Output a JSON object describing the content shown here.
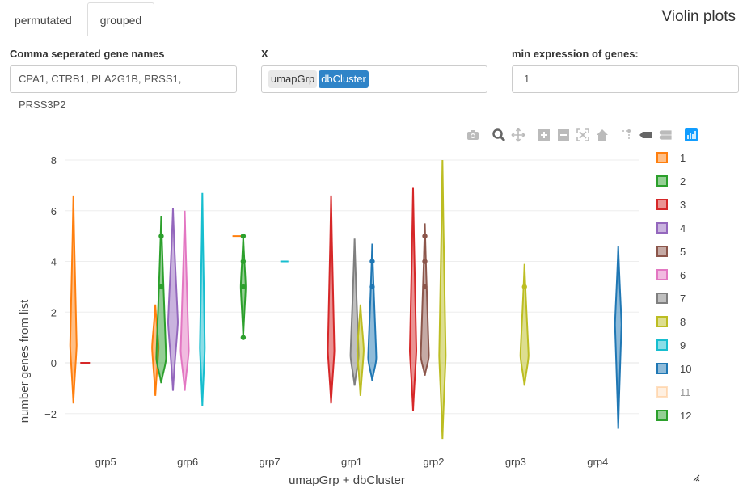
{
  "tabs": [
    {
      "label": "permutated",
      "active": false
    },
    {
      "label": "grouped",
      "active": true
    }
  ],
  "page_title": "Violin plots",
  "fields": {
    "genes_label": "Comma seperated gene names",
    "genes_value": "CPA1, CTRB1, PLA2G1B, PRSS1, PRSS3P2",
    "x_label": "X",
    "x_chips": [
      "umapGrp",
      "dbCluster"
    ],
    "minexpr_label": "min expression of genes:",
    "minexpr_value": "1"
  },
  "modebar_icons": [
    "camera-icon",
    "zoom-icon",
    "pan-icon",
    "zoom-in-icon",
    "zoom-out-icon",
    "autoscale-icon",
    "reset-axes-icon",
    "spike-lines-icon",
    "hover-closest-icon",
    "hover-compare-icon",
    "plotly-logo-icon"
  ],
  "chart_data": {
    "type": "violin",
    "xlabel": "umapGrp + dbCluster",
    "ylabel": "number genes from list",
    "categories": [
      "grp5",
      "grp6",
      "grp7",
      "grp1",
      "grp2",
      "grp3",
      "grp4"
    ],
    "ylim": [
      -3,
      8
    ],
    "yticks": [
      -2,
      0,
      2,
      4,
      6,
      8
    ],
    "grid": true,
    "legend_position": "right",
    "series": [
      {
        "name": "1",
        "color": "#ff7f0e",
        "violins": [
          {
            "cat": "grp5",
            "min": -1.6,
            "max": 6.6,
            "peak": 0.7,
            "width": 4
          },
          {
            "cat": "grp6",
            "min": -1.3,
            "max": 2.3,
            "peak": 0.6,
            "width": 4
          },
          {
            "cat": "grp7",
            "min": 5,
            "max": 5,
            "peak": 5,
            "width": 6
          }
        ]
      },
      {
        "name": "2",
        "color": "#2ca02c",
        "violins": [
          {
            "cat": "grp6",
            "min": -0.8,
            "max": 5.8,
            "peak": 0.2,
            "width": 6,
            "points": [
              5,
              3
            ]
          },
          {
            "cat": "grp7",
            "min": 1,
            "max": 5,
            "peak": 3,
            "width": 3,
            "points": [
              5,
              4,
              3,
              1
            ]
          }
        ]
      },
      {
        "name": "3",
        "color": "#d62728",
        "violins": [
          {
            "cat": "grp5",
            "min": 0,
            "max": 0,
            "peak": 0,
            "width": 6
          },
          {
            "cat": "grp1",
            "min": -1.6,
            "max": 6.6,
            "peak": 0.5,
            "width": 4
          },
          {
            "cat": "grp2",
            "min": -1.9,
            "max": 6.9,
            "peak": 0.5,
            "width": 4
          }
        ]
      },
      {
        "name": "4",
        "color": "#9467bd",
        "violins": [
          {
            "cat": "grp6",
            "min": -1.1,
            "max": 6.1,
            "peak": 1.6,
            "width": 6
          }
        ]
      },
      {
        "name": "5",
        "color": "#8c564b",
        "violins": [
          {
            "cat": "grp2",
            "min": -0.5,
            "max": 5.5,
            "peak": 0.3,
            "width": 5,
            "points": [
              5,
              4,
              3
            ]
          }
        ]
      },
      {
        "name": "6",
        "color": "#e377c2",
        "violins": [
          {
            "cat": "grp6",
            "min": -1.1,
            "max": 6.0,
            "peak": 0.5,
            "width": 5
          }
        ]
      },
      {
        "name": "7",
        "color": "#7f7f7f",
        "violins": [
          {
            "cat": "grp1",
            "min": -0.9,
            "max": 4.9,
            "peak": 0.3,
            "width": 5
          }
        ]
      },
      {
        "name": "8",
        "color": "#bcbd22",
        "violins": [
          {
            "cat": "grp1",
            "min": -1.3,
            "max": 2.3,
            "peak": 0.5,
            "width": 4
          },
          {
            "cat": "grp2",
            "min": -3,
            "max": 8,
            "peak": 0.3,
            "width": 4
          },
          {
            "cat": "grp3",
            "min": -0.9,
            "max": 3.9,
            "peak": 0.3,
            "width": 5,
            "points": [
              3
            ]
          }
        ]
      },
      {
        "name": "9",
        "color": "#17becf",
        "violins": [
          {
            "cat": "grp6",
            "min": -1.7,
            "max": 6.7,
            "peak": 0.6,
            "width": 3
          },
          {
            "cat": "grp7",
            "min": 4,
            "max": 4,
            "peak": 4,
            "width": 5
          }
        ]
      },
      {
        "name": "10",
        "color": "#1f77b4",
        "violins": [
          {
            "cat": "grp1",
            "min": -0.7,
            "max": 4.7,
            "peak": 0.2,
            "width": 5,
            "points": [
              4,
              3
            ]
          },
          {
            "cat": "grp4",
            "min": -2.6,
            "max": 4.6,
            "peak": 1.5,
            "width": 4
          }
        ]
      },
      {
        "name": "11",
        "color": "#ffbb78",
        "violins": [],
        "hidden": true
      },
      {
        "name": "12",
        "color": "#2ca02c",
        "violins": []
      }
    ]
  }
}
